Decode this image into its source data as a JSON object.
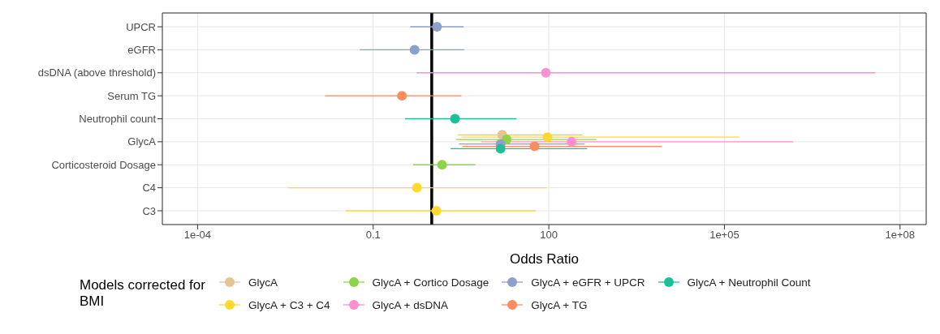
{
  "chart_data": {
    "type": "scatter",
    "orientation": "horizontal",
    "xlabel": "Odds Ratio",
    "legend_title": "Models corrected for BMI",
    "legend": "bottom",
    "log": "x",
    "grid": true,
    "marker": "circle",
    "categories": [
      "UPCR",
      "eGFR",
      "dsDNA (above threshold)",
      "Serum TG",
      "Neutrophil count",
      "GlycA",
      "Corticosteroid Dosage",
      "C4",
      "C3"
    ],
    "xlim": [
      2.5e-05,
      280000000
    ],
    "xticks": [
      {
        "value": 0.0001,
        "label": "1e-04"
      },
      0.1,
      100,
      {
        "value": 100000,
        "label": "1e+05"
      },
      {
        "value": 100000000,
        "label": "1e+08"
      }
    ],
    "ref_lines": [
      {
        "axis": "x",
        "value": 1,
        "label": null,
        "color": "#000000"
      }
    ],
    "series": [
      {
        "name": "GlycA",
        "color": "#e5c494",
        "values": [
          null,
          null,
          null,
          null,
          null,
          16,
          null,
          null,
          null
        ],
        "errors": [
          null,
          null,
          null,
          null,
          null,
          [
            2.8,
            370
          ],
          null,
          null,
          null
        ]
      },
      {
        "name": "GlycA + C3 + C4",
        "color": "#ffd92f",
        "values": [
          null,
          null,
          null,
          null,
          null,
          95,
          null,
          0.56,
          1.2
        ],
        "errors": [
          null,
          null,
          null,
          null,
          null,
          [
            3.2,
            180000
          ],
          null,
          [
            0.0035,
            91
          ],
          [
            0.034,
            60
          ]
        ]
      },
      {
        "name": "GlycA + Cortico Dosage",
        "color": "#8ed545",
        "values": [
          null,
          null,
          null,
          null,
          null,
          19,
          1.5,
          null,
          null
        ],
        "errors": [
          null,
          null,
          null,
          null,
          null,
          [
            2.6,
            650
          ],
          [
            0.48,
            5.6
          ],
          null,
          null
        ]
      },
      {
        "name": "GlycA + dsDNA",
        "color": "#ff8fcf",
        "values": [
          null,
          null,
          89,
          null,
          null,
          245,
          null,
          null,
          null
        ],
        "errors": [
          null,
          null,
          [
            0.55,
            38000000
          ],
          null,
          null,
          [
            7,
            1500000
          ],
          null,
          null,
          null
        ]
      },
      {
        "name": "GlycA + eGFR + UPCR",
        "color": "#8da0cb",
        "values": [
          1.23,
          0.51,
          null,
          null,
          null,
          15,
          null,
          null,
          null
        ],
        "errors": [
          [
            0.43,
            3.5
          ],
          [
            0.059,
            3.6
          ],
          null,
          null,
          null,
          [
            2.9,
            410
          ],
          null,
          null,
          null
        ]
      },
      {
        "name": "GlycA + TG",
        "color": "#fc8d62",
        "values": [
          null,
          null,
          null,
          0.31,
          null,
          57,
          null,
          null,
          null
        ],
        "errors": [
          null,
          null,
          null,
          [
            0.015,
            3.2
          ],
          null,
          [
            3.3,
            8500
          ],
          null,
          null,
          null
        ]
      },
      {
        "name": "GlycA + Neutrophil Count",
        "color": "#1dbf99",
        "values": [
          null,
          null,
          null,
          null,
          2.5,
          15,
          null,
          null,
          null
        ],
        "errors": [
          null,
          null,
          null,
          null,
          [
            0.35,
            28
          ],
          [
            2.1,
            450
          ],
          null,
          null,
          null
        ]
      }
    ]
  }
}
